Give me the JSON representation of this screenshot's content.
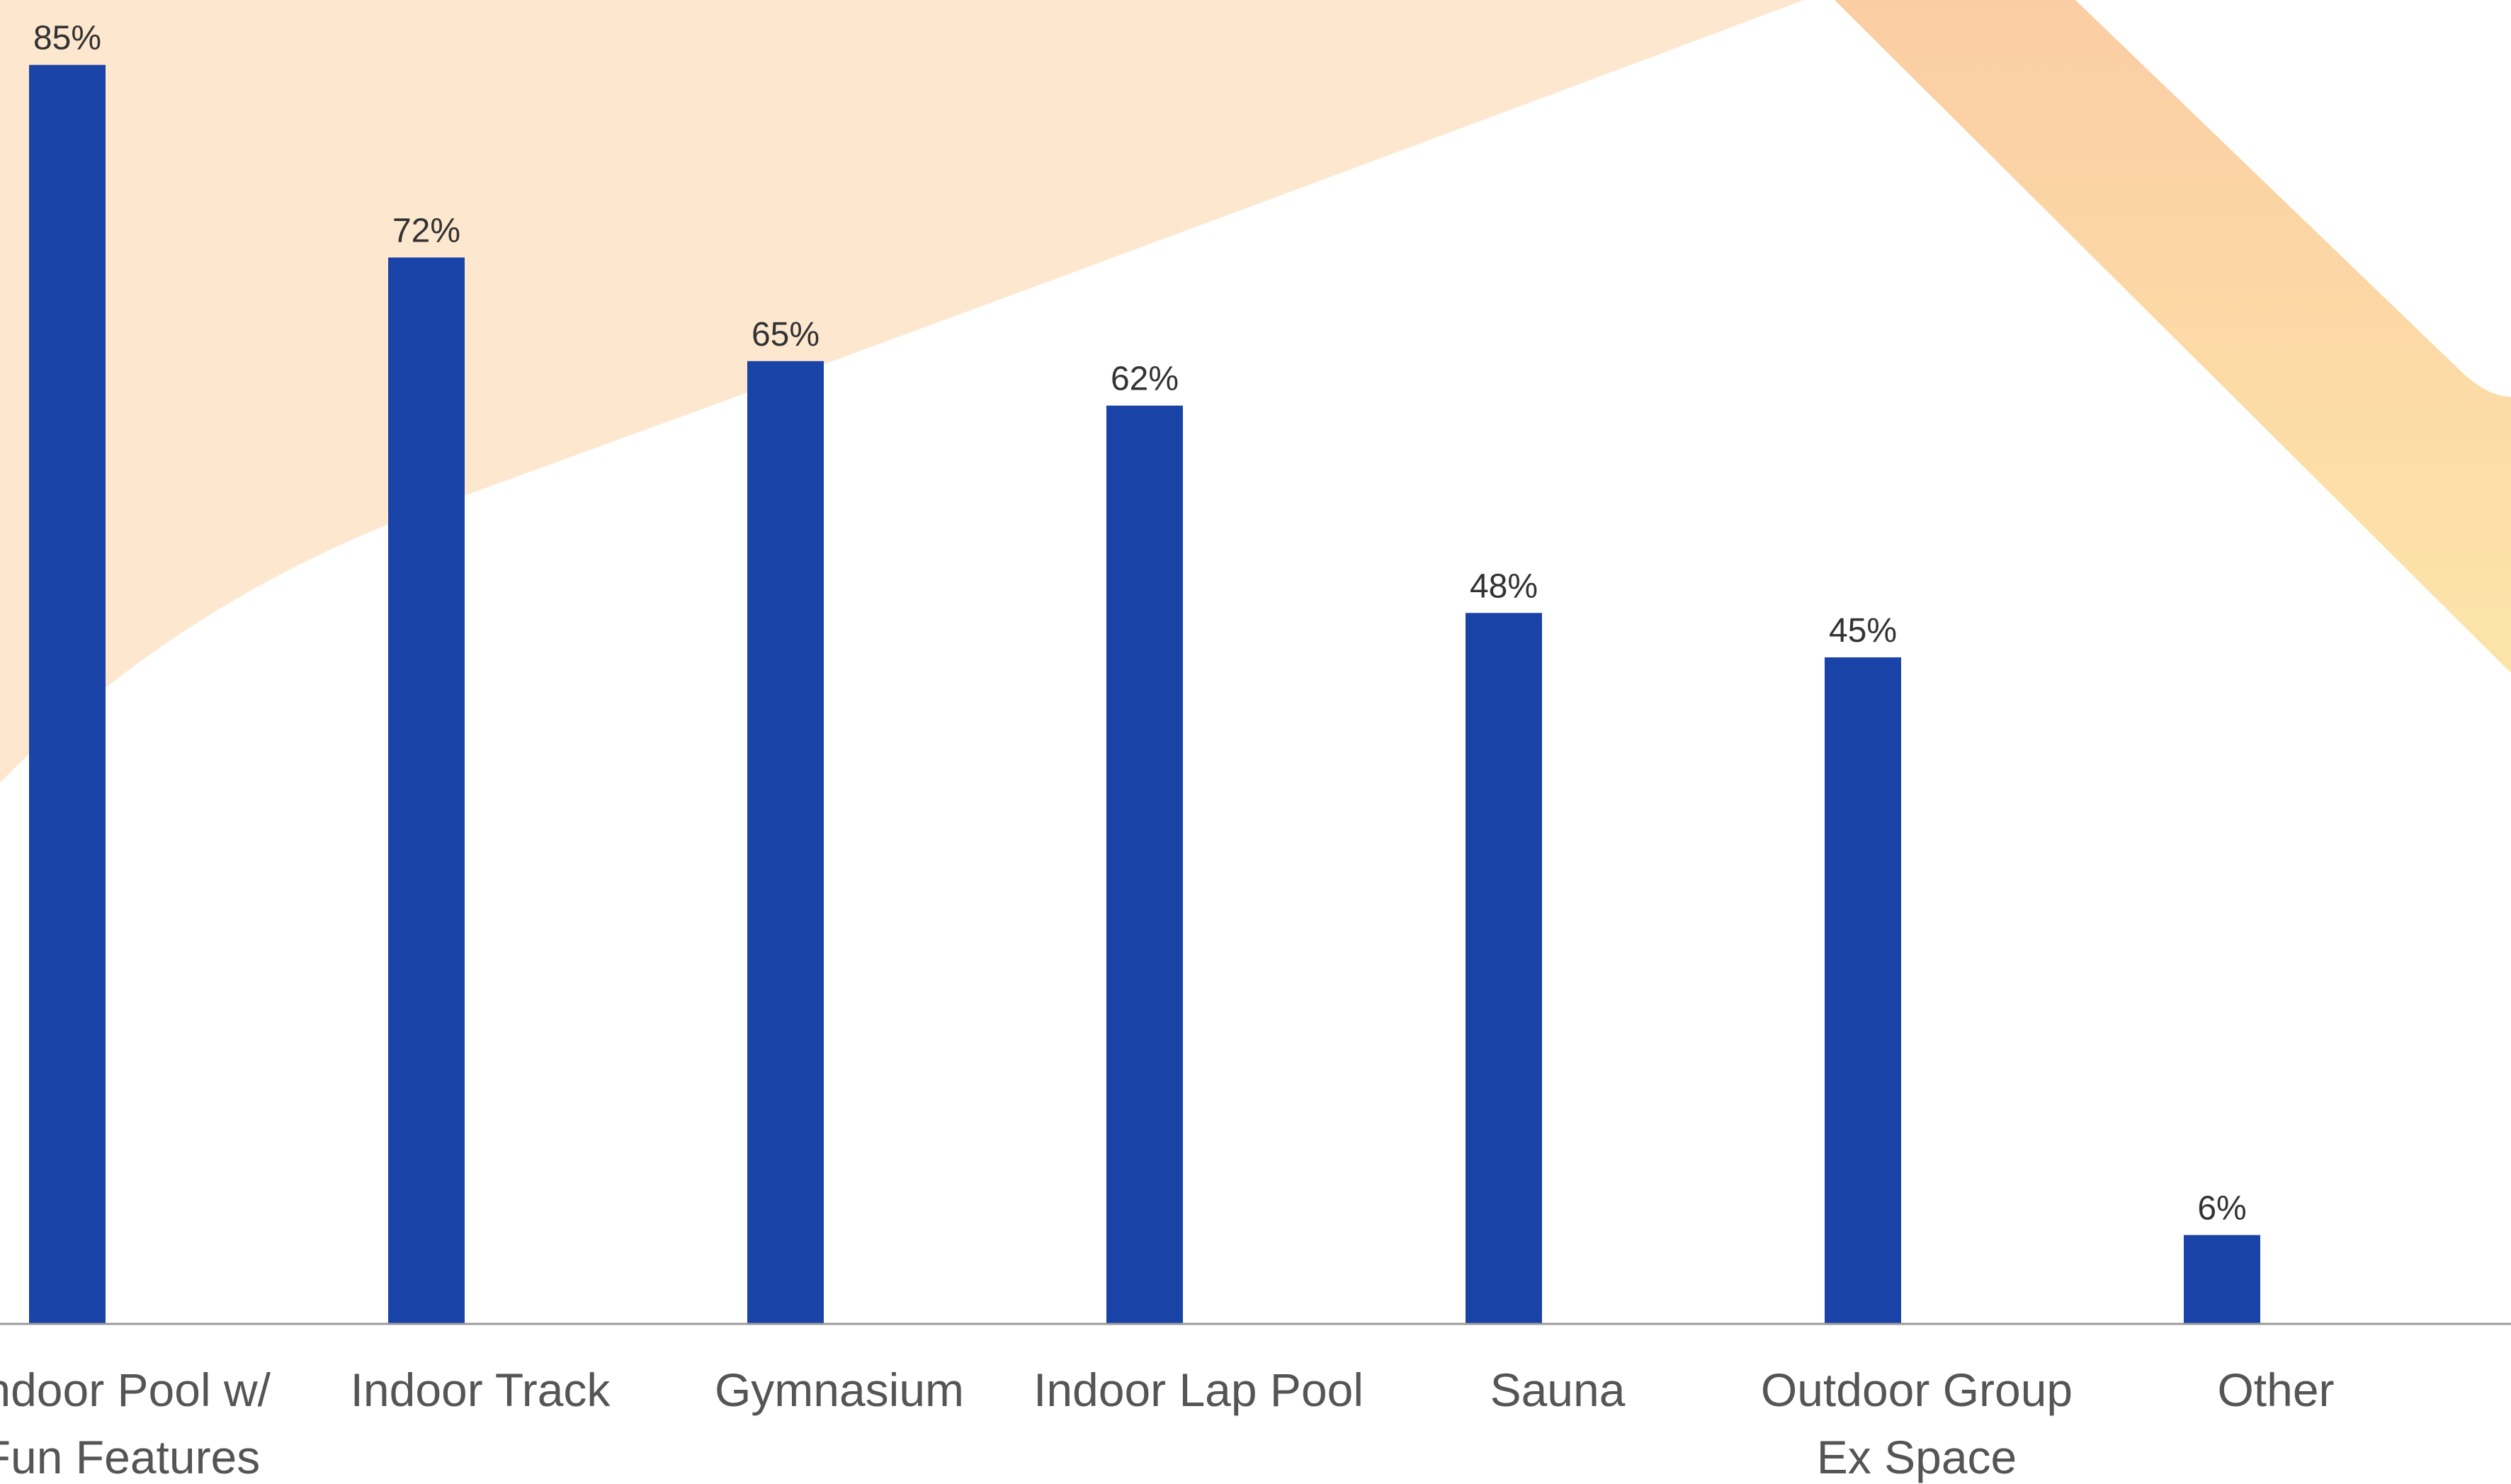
{
  "colors": {
    "bar": "#1a43a8",
    "axis": "#999999",
    "value_text": "#333333",
    "category_text": "#555555",
    "bg_band": "#fde8cf",
    "bg_stripe_top": "#fbcda3",
    "bg_stripe_bottom": "#fce5a8"
  },
  "chart_data": {
    "type": "bar",
    "categories": [
      [
        "Indoor Pool w/",
        "Fun Features"
      ],
      [
        "Indoor Track"
      ],
      [
        "Gymnasium"
      ],
      [
        "Indoor Lap Pool"
      ],
      [
        "Sauna"
      ],
      [
        "Outdoor Group",
        "Ex Space"
      ],
      [
        "Other"
      ]
    ],
    "values": [
      85,
      72,
      65,
      62,
      48,
      45,
      6
    ],
    "value_labels": [
      "85%",
      "72%",
      "65%",
      "62%",
      "48%",
      "45%",
      "6%"
    ],
    "ylim": [
      0,
      89
    ],
    "grid": false,
    "legend": "none",
    "title": "",
    "xlabel": "",
    "ylabel": ""
  }
}
